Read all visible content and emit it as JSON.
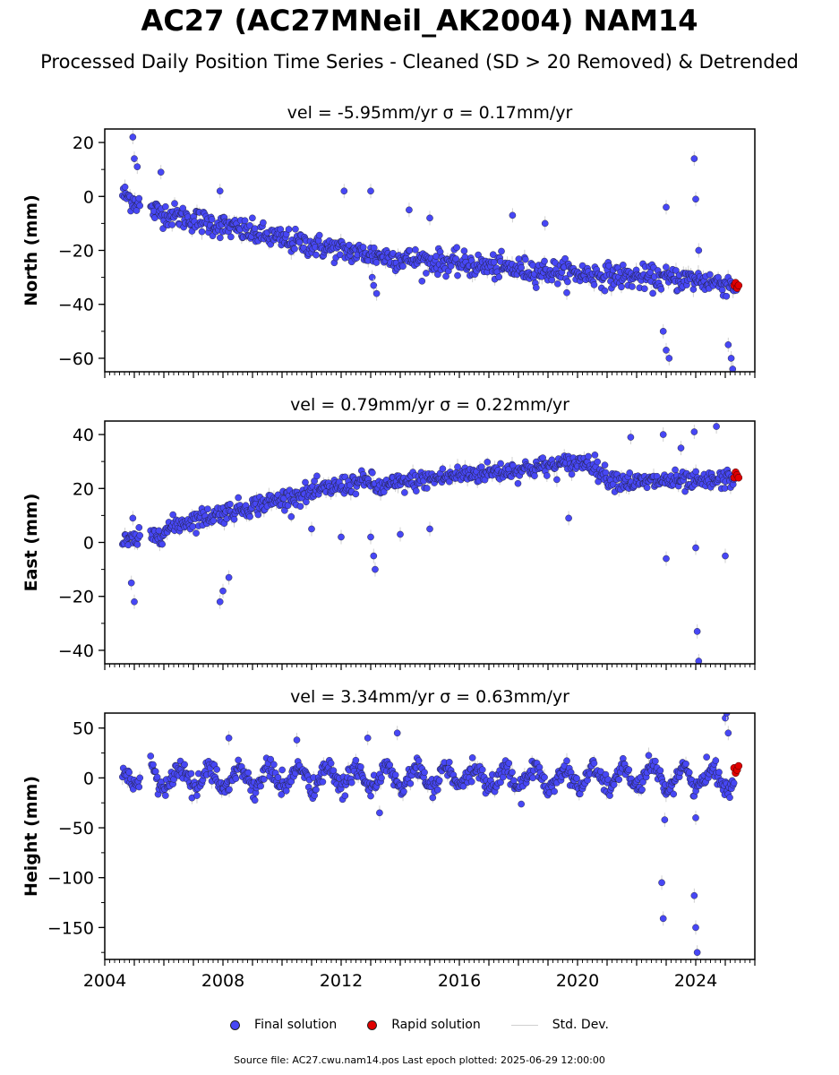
{
  "header": {
    "title": "AC27 (AC27MNeil_AK2004) NAM14",
    "subtitle": "Processed Daily Position Time Series - Cleaned (SD > 20 Removed) & Detrended"
  },
  "legend": {
    "final_label": "Final solution",
    "rapid_label": "Rapid solution",
    "std_label": "Std. Dev."
  },
  "footer": {
    "source_text": "Source file: AC27.cwu.nam14.pos  Last epoch plotted: 2025-06-29 12:00:00"
  },
  "colors": {
    "final": "#4747f5",
    "rapid": "#e00000",
    "std": "#d0d0d0"
  },
  "chart_data": [
    {
      "type": "scatter",
      "title": "vel = -5.95mm/yr   σ = 0.17mm/yr",
      "ylabel": "North (mm)",
      "xlim": [
        2004.0,
        2026.0
      ],
      "ylim": [
        -65,
        25
      ],
      "yticks": [
        20,
        0,
        -20,
        -40,
        -60
      ],
      "ytick_labels": [
        "20",
        "0",
        "−20",
        "−40",
        "−60"
      ],
      "xticks": [],
      "xtick_labels": [],
      "trend": [
        [
          2004.6,
          1
        ],
        [
          2005.5,
          -5
        ],
        [
          2008,
          -11
        ],
        [
          2010,
          -16
        ],
        [
          2012,
          -20
        ],
        [
          2014,
          -23
        ],
        [
          2016,
          -25
        ],
        [
          2018,
          -27
        ],
        [
          2020,
          -28.5
        ],
        [
          2022,
          -30
        ],
        [
          2024,
          -31
        ],
        [
          2025.5,
          -33
        ]
      ],
      "scatter_sd": 2.2,
      "outliers": [
        [
          2004.95,
          22
        ],
        [
          2005.0,
          14
        ],
        [
          2005.1,
          11
        ],
        [
          2005.9,
          9
        ],
        [
          2007.9,
          2
        ],
        [
          2012.1,
          2
        ],
        [
          2013.0,
          2
        ],
        [
          2013.05,
          -30
        ],
        [
          2013.1,
          -33
        ],
        [
          2013.2,
          -36
        ],
        [
          2014.3,
          -5
        ],
        [
          2015.0,
          -8
        ],
        [
          2017.8,
          -7
        ],
        [
          2018.9,
          -10
        ],
        [
          2022.9,
          -50
        ],
        [
          2023.0,
          -57
        ],
        [
          2023.1,
          -60
        ],
        [
          2023.0,
          -4
        ],
        [
          2023.95,
          14
        ],
        [
          2024.0,
          -1
        ],
        [
          2024.1,
          -20
        ],
        [
          2025.1,
          -55
        ],
        [
          2025.2,
          -60
        ],
        [
          2025.25,
          -64
        ]
      ],
      "rapid": [
        [
          2025.3,
          -33
        ],
        [
          2025.35,
          -32
        ],
        [
          2025.4,
          -34
        ],
        [
          2025.45,
          -33
        ]
      ]
    },
    {
      "type": "scatter",
      "title": "vel = 0.79mm/yr   σ = 0.22mm/yr",
      "ylabel": "East (mm)",
      "xlim": [
        2004.0,
        2026.0
      ],
      "ylim": [
        -45,
        45
      ],
      "yticks": [
        40,
        20,
        0,
        -20,
        -40
      ],
      "ytick_labels": [
        "40",
        "20",
        "0",
        "−20",
        "−40"
      ],
      "xticks": [],
      "xtick_labels": [],
      "trend": [
        [
          2004.6,
          0
        ],
        [
          2005.6,
          2
        ],
        [
          2006.5,
          7
        ],
        [
          2008,
          11
        ],
        [
          2010,
          16
        ],
        [
          2012,
          21
        ],
        [
          2013,
          23
        ],
        [
          2013.2,
          20
        ],
        [
          2014,
          22
        ],
        [
          2016,
          25
        ],
        [
          2018,
          27
        ],
        [
          2019.7,
          29
        ],
        [
          2020.4,
          30
        ],
        [
          2021,
          24
        ],
        [
          2022,
          22
        ],
        [
          2023,
          23
        ],
        [
          2024,
          22
        ],
        [
          2025.4,
          24
        ]
      ],
      "scatter_sd": 1.8,
      "outliers": [
        [
          2005.0,
          -22
        ],
        [
          2004.9,
          -15
        ],
        [
          2004.95,
          9
        ],
        [
          2007.9,
          -22
        ],
        [
          2008.0,
          -18
        ],
        [
          2008.2,
          -13
        ],
        [
          2011.0,
          5
        ],
        [
          2012.0,
          2
        ],
        [
          2013.0,
          2
        ],
        [
          2013.1,
          -5
        ],
        [
          2013.15,
          -10
        ],
        [
          2014.0,
          3
        ],
        [
          2015.0,
          5
        ],
        [
          2019.7,
          9
        ],
        [
          2021.8,
          39
        ],
        [
          2022.9,
          40
        ],
        [
          2023.0,
          -6
        ],
        [
          2023.5,
          35
        ],
        [
          2023.95,
          41
        ],
        [
          2024.0,
          -2
        ],
        [
          2024.05,
          -33
        ],
        [
          2024.1,
          -44
        ],
        [
          2024.7,
          43
        ],
        [
          2025.0,
          -5
        ]
      ],
      "rapid": [
        [
          2025.3,
          24
        ],
        [
          2025.35,
          26
        ],
        [
          2025.4,
          25
        ],
        [
          2025.45,
          24
        ]
      ]
    },
    {
      "type": "scatter",
      "title": "vel = 3.34mm/yr   σ = 0.63mm/yr",
      "ylabel": "Height (mm)",
      "xlim": [
        2004.0,
        2026.0
      ],
      "ylim": [
        -182,
        65
      ],
      "yticks": [
        50,
        0,
        -50,
        -100,
        -150
      ],
      "ytick_labels": [
        "50",
        "0",
        "−50",
        "−100",
        "−150"
      ],
      "xticks": [
        2004,
        2008,
        2012,
        2016,
        2020,
        2024
      ],
      "xtick_labels": [
        "2004",
        "2008",
        "2012",
        "2016",
        "2020",
        "2024"
      ],
      "trend": [
        [
          2004.6,
          0
        ],
        [
          2025.4,
          0
        ]
      ],
      "seasonal_amp": 10,
      "scatter_sd": 5,
      "outliers": [
        [
          2008.2,
          40
        ],
        [
          2010.5,
          38
        ],
        [
          2012.9,
          40
        ],
        [
          2013.3,
          -35
        ],
        [
          2013.9,
          45
        ],
        [
          2022.85,
          -105
        ],
        [
          2022.9,
          -141
        ],
        [
          2022.95,
          -42
        ],
        [
          2023.95,
          -118
        ],
        [
          2024.0,
          -150
        ],
        [
          2024.05,
          -175
        ],
        [
          2024.0,
          -40
        ],
        [
          2025.0,
          60
        ],
        [
          2025.05,
          65
        ],
        [
          2025.1,
          45
        ]
      ],
      "rapid": [
        [
          2025.3,
          10
        ],
        [
          2025.35,
          5
        ],
        [
          2025.4,
          8
        ],
        [
          2025.45,
          12
        ]
      ]
    }
  ]
}
